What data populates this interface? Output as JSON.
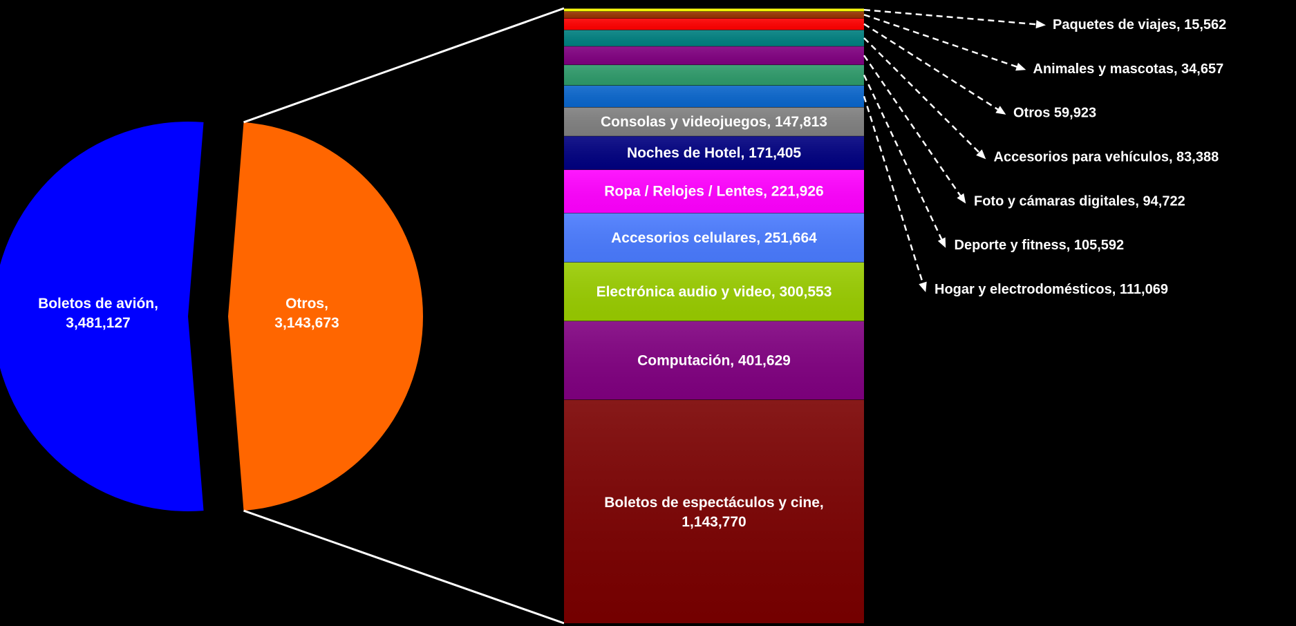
{
  "chart_data": [
    {
      "type": "pie",
      "slices": [
        {
          "label": "Boletos de avión,",
          "value_text": "3,481,127",
          "value": 3481127,
          "color": "#0000FF"
        },
        {
          "label": "Otros,",
          "value_text": "3,143,673",
          "value": 3143673,
          "color": "#FF6600"
        }
      ]
    },
    {
      "type": "bar",
      "stacked": true,
      "segments": [
        {
          "label": "Boletos de espectáculos y cine,",
          "value_text": "1,143,770",
          "value": 1143770,
          "color": "#7A0000",
          "display": "inside"
        },
        {
          "label": "Computación, 401,629",
          "value": 401629,
          "color": "#800080",
          "display": "inside"
        },
        {
          "label": "Electrónica audio y video, 300,553",
          "value": 300553,
          "color": "#99CC00",
          "display": "inside"
        },
        {
          "label": "Accesorios celulares, 251,664",
          "value": 251664,
          "color": "#4A7BFF",
          "display": "inside"
        },
        {
          "label": "Ropa / Relojes / Lentes, 221,926",
          "value": 221926,
          "color": "#FF00FF",
          "display": "inside"
        },
        {
          "label": "Noches de Hotel, 171,405",
          "value": 171405,
          "color": "#000080",
          "display": "inside"
        },
        {
          "label": "Consolas y videojuegos, 147,813",
          "value": 147813,
          "color": "#808080",
          "display": "inside"
        },
        {
          "label": "Hogar y electrodomésticos, 111,069",
          "value": 111069,
          "color": "#0A66CC",
          "display": "callout"
        },
        {
          "label": "Deporte y fitness, 105,592",
          "value": 105592,
          "color": "#2E9A6A",
          "display": "callout"
        },
        {
          "label": "Foto y cámaras digitales, 94,722",
          "value": 94722,
          "color": "#800080",
          "display": "callout"
        },
        {
          "label": "Accesorios para vehículos, 83,388",
          "value": 83388,
          "color": "#008080",
          "display": "callout"
        },
        {
          "label": "Otros  59,923",
          "value": 59923,
          "color": "#FF0000",
          "display": "callout"
        },
        {
          "label": "Animales y mascotas, 34,657",
          "value": 34657,
          "color": "#993300",
          "display": "callout"
        },
        {
          "label": "Paquetes de viajes, 15,562",
          "value": 15562,
          "color": "#FFFF00",
          "display": "callout"
        }
      ]
    }
  ]
}
